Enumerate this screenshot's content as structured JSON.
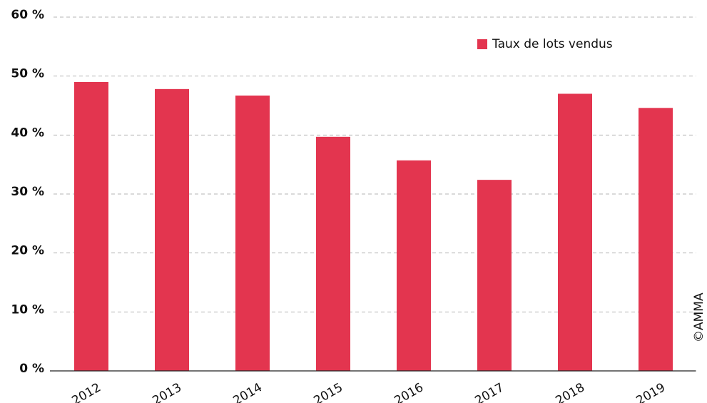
{
  "chart_data": {
    "type": "bar",
    "categories": [
      "2012",
      "2013",
      "2014",
      "2015",
      "2016",
      "2017",
      "2018",
      "2019"
    ],
    "series": [
      {
        "name": "Taux de lots vendus",
        "color": "#e3354f",
        "values": [
          49,
          47.8,
          46.7,
          39.7,
          35.7,
          32.4,
          47,
          44.6
        ]
      }
    ],
    "ylim": [
      0,
      60
    ],
    "yticks": [
      {
        "value": 0,
        "label": "0 %"
      },
      {
        "value": 10,
        "label": "10 %"
      },
      {
        "value": 20,
        "label": "20 %"
      },
      {
        "value": 30,
        "label": "30 %"
      },
      {
        "value": 40,
        "label": "40 %"
      },
      {
        "value": 50,
        "label": "50 %"
      },
      {
        "value": 60,
        "label": "60 %"
      }
    ],
    "grid": true,
    "legend": "top-right",
    "annotations": [
      "©AMMA"
    ]
  }
}
